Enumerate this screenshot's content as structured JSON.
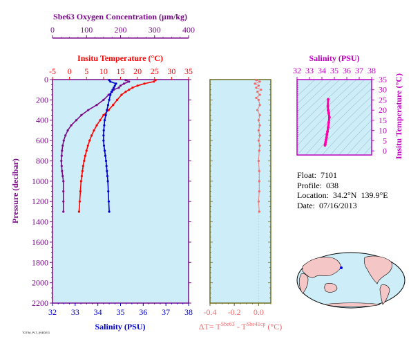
{
  "colors": {
    "oxygen": "#7a0a8a",
    "temperature": "#ff0000",
    "salinity": "#0000d0",
    "delta_t": "#f26a6a",
    "salinity_panel": "#c000c0",
    "profile_pink": "#ff00aa",
    "plot_bg": "#cdeef8",
    "frame_main": "#7a0a8a",
    "frame_delta": "#6b6b1f",
    "frame_ts": "#c000c0",
    "map_land": "#f4c6c6",
    "map_sea": "#cdeef8",
    "marker": "#0000ff"
  },
  "info": {
    "float": "Float:  7101",
    "profile": "Profile:  038",
    "location": "Location:  34.2°N  139.9°E",
    "date": "Date:  07/16/2013"
  },
  "footnote": "TOTIM_PLT_5VEDEG",
  "chart_data": [
    {
      "type": "line",
      "panel": "profile",
      "ylabel": "Pressure (decibar)",
      "ylim": [
        0,
        2200
      ],
      "yticks": [
        0,
        200,
        400,
        600,
        800,
        1000,
        1200,
        1400,
        1600,
        1800,
        2000,
        2200
      ],
      "axes": {
        "oxygen": {
          "label": "Sbe63 Oxygen Concentration (µm/kg)",
          "ticks": [
            0,
            100,
            200,
            300,
            400
          ],
          "lim": [
            0,
            400
          ]
        },
        "temperature": {
          "label": "Insitu Temperature (°C)",
          "ticks": [
            -5,
            0,
            5,
            10,
            15,
            20,
            25,
            30,
            35
          ],
          "lim": [
            -5,
            35
          ]
        },
        "salinity": {
          "label": "Salinity (PSU)",
          "ticks": [
            32,
            33,
            34,
            35,
            36,
            37,
            38
          ],
          "lim": [
            32,
            38
          ]
        }
      },
      "series": [
        {
          "key": "oxygen",
          "pressure": [
            5,
            20,
            40,
            60,
            80,
            100,
            120,
            150,
            200,
            250,
            300,
            350,
            400,
            450,
            500,
            550,
            600,
            650,
            700,
            750,
            800,
            850,
            900,
            950,
            1000,
            1100,
            1200,
            1300
          ],
          "values": [
            215,
            225,
            210,
            200,
            195,
            180,
            175,
            165,
            150,
            130,
            105,
            85,
            70,
            55,
            45,
            38,
            33,
            30,
            28,
            27,
            26,
            27,
            28,
            30,
            32,
            32,
            32,
            32
          ]
        },
        {
          "key": "temperature",
          "pressure": [
            5,
            20,
            40,
            60,
            80,
            100,
            120,
            150,
            200,
            250,
            300,
            350,
            400,
            450,
            500,
            550,
            600,
            650,
            700,
            750,
            800,
            850,
            900,
            950,
            1000,
            1100,
            1200,
            1300
          ],
          "values": [
            25.3,
            24.8,
            22.0,
            20.0,
            18.5,
            17.5,
            16.5,
            15.3,
            14.0,
            12.8,
            11.5,
            10.0,
            9.0,
            8.0,
            7.2,
            6.5,
            5.9,
            5.4,
            5.0,
            4.6,
            4.3,
            4.0,
            3.8,
            3.6,
            3.4,
            3.2,
            3.0,
            2.8
          ]
        },
        {
          "key": "salinity",
          "pressure": [
            5,
            20,
            40,
            60,
            80,
            100,
            120,
            150,
            200,
            250,
            300,
            350,
            400,
            450,
            500,
            550,
            600,
            650,
            700,
            750,
            800,
            850,
            900,
            950,
            1000,
            1100,
            1200,
            1300
          ],
          "values": [
            34.5,
            34.55,
            34.8,
            34.75,
            34.7,
            34.65,
            34.6,
            34.55,
            34.5,
            34.45,
            34.4,
            34.35,
            34.3,
            34.28,
            34.26,
            34.25,
            34.25,
            34.27,
            34.3,
            34.33,
            34.36,
            34.38,
            34.4,
            34.42,
            34.44,
            34.46,
            34.48,
            34.5
          ]
        }
      ]
    },
    {
      "type": "scatter",
      "panel": "delta_t",
      "xlabel": "ΔT= T",
      "xlabel_sup1": "Sbe63",
      "xlabel_mid": " - T",
      "xlabel_sup2": "Sbe41cp",
      "xlabel_end": " (°C)",
      "xlim": [
        -0.4,
        0.1
      ],
      "xticks": [
        -0.4,
        -0.2,
        0.0
      ],
      "xtick_labels": [
        "-0.4",
        "-0.2",
        "0.0"
      ],
      "ylim": [
        0,
        2200
      ],
      "pressure": [
        5,
        20,
        40,
        60,
        80,
        100,
        120,
        150,
        180,
        200,
        250,
        300,
        350,
        400,
        450,
        500,
        550,
        600,
        650,
        700,
        800,
        900,
        1000,
        1100,
        1200,
        1300
      ],
      "values": [
        -0.02,
        0.01,
        -0.03,
        0.0,
        -0.02,
        0.02,
        -0.01,
        0.01,
        -0.02,
        0.0,
        0.01,
        -0.01,
        0.01,
        0.0,
        0.01,
        0.0,
        0.01,
        0.0,
        0.01,
        0.005,
        0.0,
        0.005,
        0.005,
        0.005,
        0.0,
        0.005
      ]
    },
    {
      "type": "line",
      "panel": "ts",
      "xlabel": "Salinity (PSU)",
      "ylabel": "Insitu Temperature (°C)",
      "xlim": [
        32,
        38
      ],
      "xticks": [
        32,
        33,
        34,
        35,
        36,
        37,
        38
      ],
      "ylim": [
        -2,
        35
      ],
      "yticks": [
        0,
        5,
        10,
        15,
        20,
        25,
        30,
        35
      ],
      "salinity": [
        34.25,
        34.27,
        34.3,
        34.33,
        34.37,
        34.4,
        34.45,
        34.5,
        34.55,
        34.6,
        34.55,
        34.5,
        34.48,
        34.5
      ],
      "temperature": [
        2.8,
        3.4,
        4.3,
        5.4,
        6.5,
        8.0,
        9.5,
        11.5,
        14.0,
        16.5,
        18.5,
        20.0,
        22.0,
        25.3
      ]
    }
  ]
}
